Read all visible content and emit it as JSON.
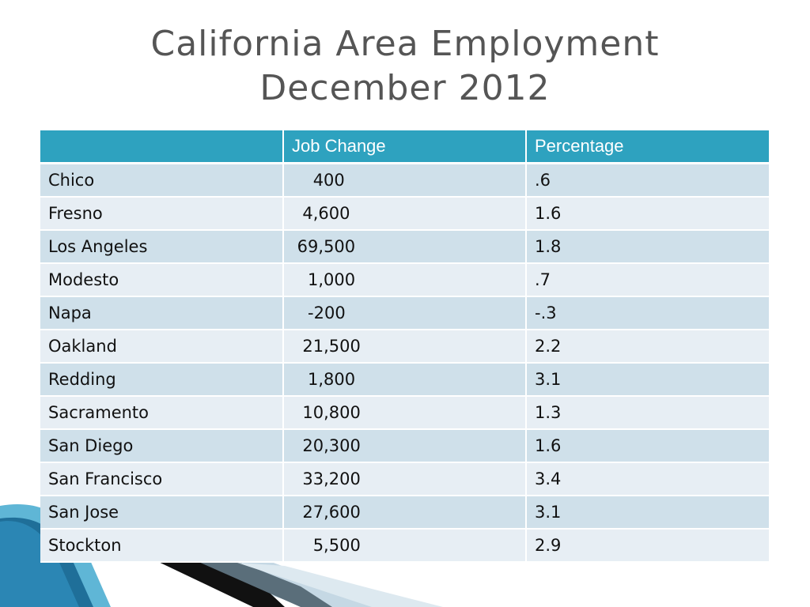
{
  "slide": {
    "title_line1": "California Area Employment",
    "title_line2": "December 2012"
  },
  "table": {
    "headers": [
      "",
      "Job Change",
      "Percentage"
    ],
    "rows": [
      {
        "area": "Chico",
        "job_change": "    400",
        "percentage": ".6"
      },
      {
        "area": "Fresno",
        "job_change": "  4,600",
        "percentage": "1.6"
      },
      {
        "area": "Los Angeles",
        "job_change": " 69,500",
        "percentage": "1.8"
      },
      {
        "area": "Modesto",
        "job_change": "   1,000",
        "percentage": ".7"
      },
      {
        "area": "Napa",
        "job_change": "   -200",
        "percentage": "-.3"
      },
      {
        "area": "Oakland",
        "job_change": "  21,500",
        "percentage": "2.2"
      },
      {
        "area": "Redding",
        "job_change": "   1,800",
        "percentage": "3.1"
      },
      {
        "area": "Sacramento",
        "job_change": "  10,800",
        "percentage": "1.3"
      },
      {
        "area": "San Diego",
        "job_change": "  20,300",
        "percentage": "1.6"
      },
      {
        "area": "San Francisco",
        "job_change": "  33,200",
        "percentage": "3.4"
      },
      {
        "area": "San Jose",
        "job_change": "  27,600",
        "percentage": "3.1"
      },
      {
        "area": "Stockton",
        "job_change": "    5,500",
        "percentage": "2.9"
      }
    ]
  },
  "colors": {
    "header": "#2ea2bf",
    "row_odd": "#cfe0ea",
    "row_even": "#e7eef4",
    "title": "#555555"
  }
}
